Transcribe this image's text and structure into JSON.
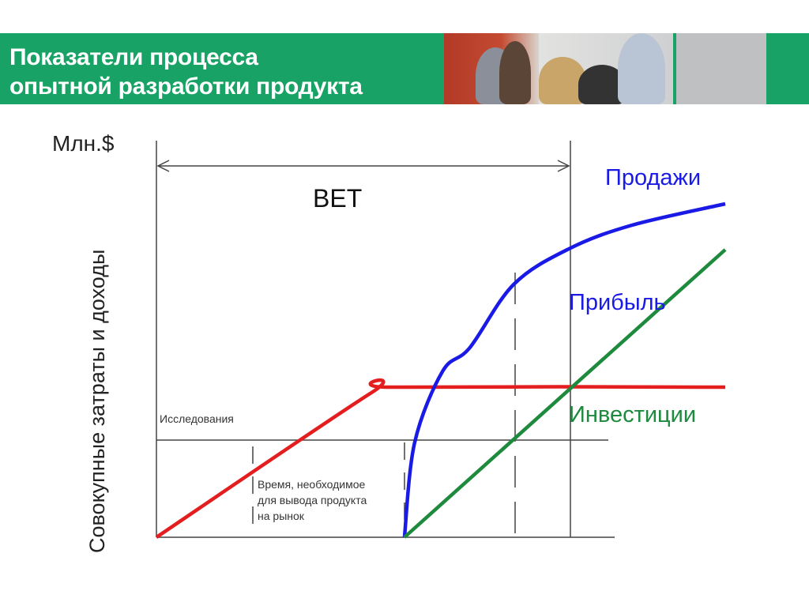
{
  "slide": {
    "title_line1": "Показатели процесса",
    "title_line2": "опытной разработки продукта"
  },
  "chart_data": {
    "type": "line",
    "title": "",
    "ylabel": "Совокупные затраты и доходы",
    "yunit": "Млн.$",
    "xlim": [
      0,
      10
    ],
    "ylim": [
      0,
      10
    ],
    "grid": false,
    "annotations": {
      "bet": "BET",
      "research": "Исследования",
      "time_to_market_1": "Время, необходимое",
      "time_to_market_2": "для вывода продукта",
      "time_to_market_3": "на рынок"
    },
    "series": [
      {
        "name": "Инвестиции",
        "color": "#e41e1e",
        "points": [
          [
            0,
            0
          ],
          [
            3.78,
            3.66
          ],
          [
            4.17,
            3.8
          ],
          [
            10,
            3.8
          ]
        ]
      },
      {
        "name": "Продажи",
        "color": "#1a1ae6",
        "points": [
          [
            4.36,
            0
          ],
          [
            4.54,
            2.4
          ],
          [
            5.03,
            4.2
          ],
          [
            5.51,
            4.8
          ],
          [
            6.28,
            6.4
          ],
          [
            7.25,
            7.3
          ],
          [
            8.36,
            7.9
          ],
          [
            10,
            8.44
          ]
        ]
      },
      {
        "name": "Прибыль",
        "color": "#1e8a3e",
        "points": [
          [
            4.36,
            0
          ],
          [
            10,
            7.28
          ]
        ]
      }
    ],
    "labels": {
      "sales": "Продажи",
      "profit": "Прибыль",
      "investment": "Инвестиции"
    },
    "label_colors": {
      "sales": "#1a1ae6",
      "profit": "#1a1ae6",
      "investment": "#1e8a3e"
    }
  }
}
